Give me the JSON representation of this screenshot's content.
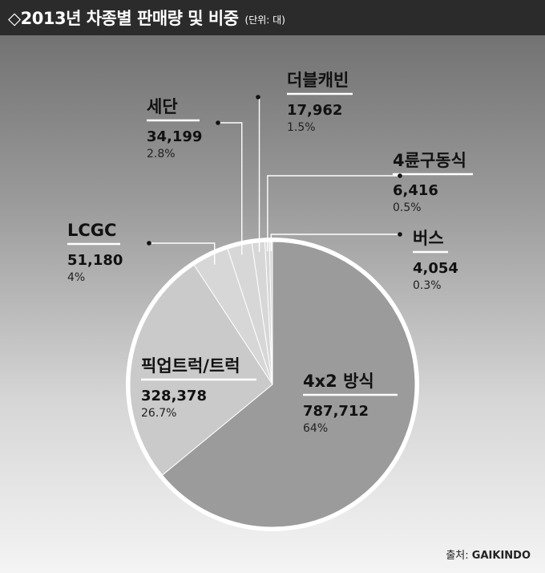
{
  "header": {
    "title": "◇2013년 차종별 판매량 및 비중",
    "unit": "(단위: 대)"
  },
  "source": {
    "label": "출처:",
    "name": "GAIKINDO"
  },
  "colors": {
    "title_bg": "#2b2b2b",
    "slice_main": "#9b9b9b",
    "slice_pickup": "#cacaca",
    "slice_small": "#d7d7d7",
    "pie_border": "#ffffff"
  },
  "chart_data": {
    "type": "pie",
    "slices": [
      {
        "name": "4x2 방식",
        "value": 787712,
        "value_label": "787,712",
        "percent": 64,
        "percent_label": "64%"
      },
      {
        "name": "픽업트럭/트럭",
        "value": 328378,
        "value_label": "328,378",
        "percent": 26.7,
        "percent_label": "26.7%"
      },
      {
        "name": "LCGC",
        "value": 51180,
        "value_label": "51,180",
        "percent": 4,
        "percent_label": "4%"
      },
      {
        "name": "세단",
        "value": 34199,
        "value_label": "34,199",
        "percent": 2.8,
        "percent_label": "2.8%"
      },
      {
        "name": "더블캐빈",
        "value": 17962,
        "value_label": "17,962",
        "percent": 1.5,
        "percent_label": "1.5%"
      },
      {
        "name": "4륜구동식",
        "value": 6416,
        "value_label": "6,416",
        "percent": 0.5,
        "percent_label": "0.5%"
      },
      {
        "name": "버스",
        "value": 4054,
        "value_label": "4,054",
        "percent": 0.3,
        "percent_label": "0.3%"
      }
    ]
  }
}
